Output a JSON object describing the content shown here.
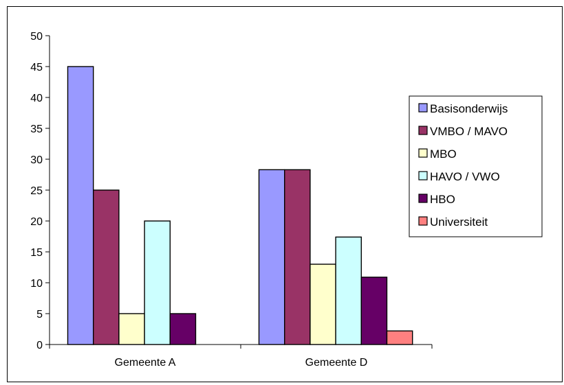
{
  "chart_data": {
    "type": "bar",
    "categories": [
      "Gemeente A",
      "Gemeente D"
    ],
    "series": [
      {
        "name": "Basisonderwijs",
        "color": "#9999FF",
        "values": [
          45,
          28.3
        ]
      },
      {
        "name": "VMBO / MAVO",
        "color": "#993366",
        "values": [
          25,
          28.3
        ]
      },
      {
        "name": "MBO",
        "color": "#FFFFCC",
        "values": [
          5,
          13
        ]
      },
      {
        "name": "HAVO / VWO",
        "color": "#CCFFFF",
        "values": [
          20,
          17.4
        ]
      },
      {
        "name": "HBO",
        "color": "#660066",
        "values": [
          5,
          10.9
        ]
      },
      {
        "name": "Universiteit",
        "color": "#FF8080",
        "values": [
          0,
          2.2
        ]
      }
    ],
    "ylim": [
      0,
      50
    ],
    "yticks": [
      "0",
      "5",
      "10",
      "15",
      "20",
      "25",
      "30",
      "35",
      "40",
      "45",
      "50"
    ],
    "grid": false,
    "legend": "right"
  }
}
